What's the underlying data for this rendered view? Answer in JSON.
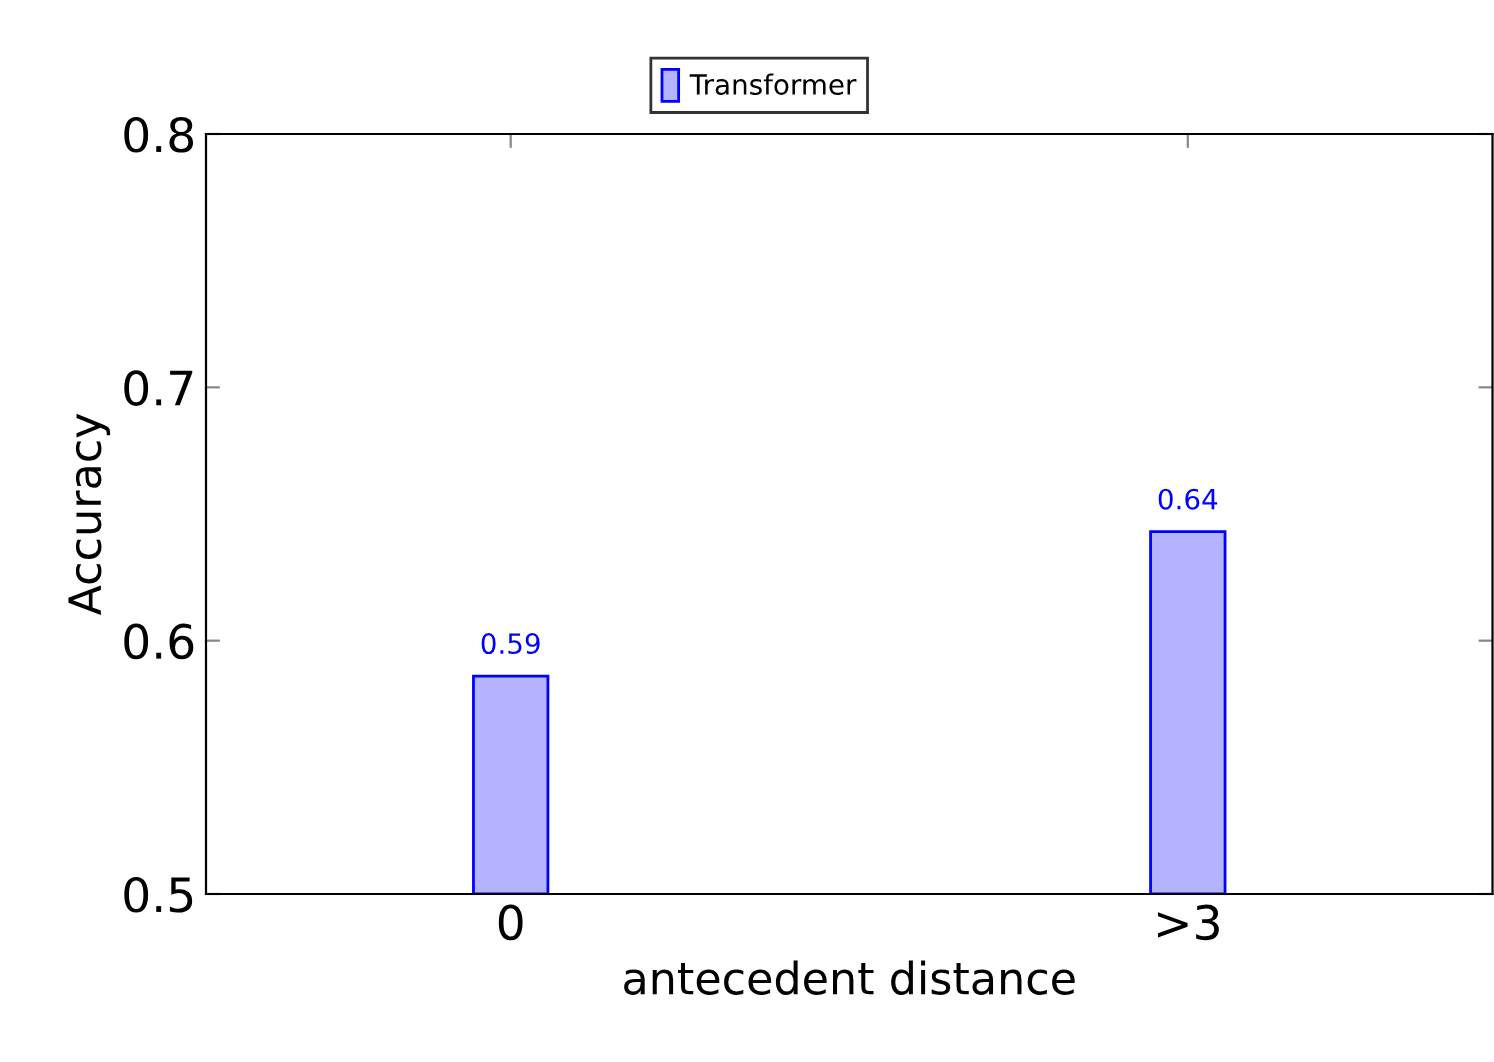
{
  "chart_data": {
    "type": "bar",
    "xlabel": "antecedent distance",
    "ylabel": "Accuracy",
    "categories": [
      "0",
      ">3"
    ],
    "series": [
      {
        "name": "Transformer",
        "color": "#b3b3ff",
        "values": [
          0.586,
          0.643
        ],
        "value_labels": [
          "0.59",
          "0.64"
        ]
      }
    ],
    "ylim": [
      0.5,
      0.8
    ],
    "yticks": [
      0.5,
      0.6,
      0.7,
      0.8
    ],
    "grid": false,
    "legend": "top"
  }
}
